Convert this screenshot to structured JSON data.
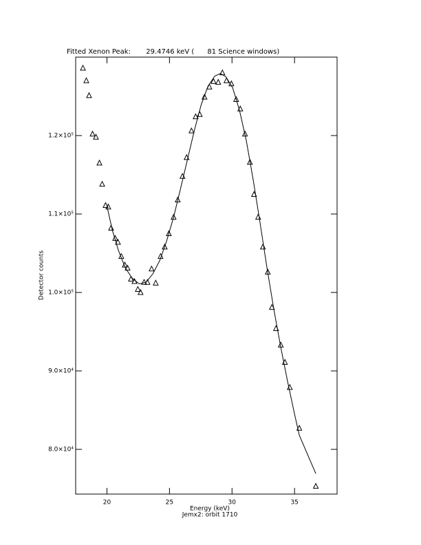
{
  "chart_data": {
    "type": "scatter",
    "title": "Fitted Xenon Peak:       29.4746 keV (      81 Science windows)",
    "x_label": "Energy (keV)",
    "subtitle": "Jemx2: orbit 1710",
    "y_label": "Detector counts",
    "xlim": [
      17.5,
      38.4
    ],
    "ylim": [
      74300,
      130000
    ],
    "xticks": [
      20,
      25,
      30,
      35
    ],
    "yticks": [
      {
        "value": 80000,
        "label": "8.0×10⁴"
      },
      {
        "value": 90000,
        "label": "9.0×10⁴"
      },
      {
        "value": 100000,
        "label": "1.0×10⁵"
      },
      {
        "value": 110000,
        "label": "1.1×10⁵"
      },
      {
        "value": 120000,
        "label": "1.2×10⁵"
      }
    ],
    "color": "#000000",
    "series": [
      {
        "marker": "triangle",
        "x": [
          18.08,
          18.35,
          18.57,
          18.85,
          19.12,
          19.4,
          19.62,
          19.89,
          20.11,
          20.33,
          20.66,
          20.88,
          21.15,
          21.43,
          21.65,
          21.92,
          22.2,
          22.47,
          22.69,
          22.97,
          23.24,
          23.57,
          23.9,
          24.29,
          24.62,
          24.95,
          25.33,
          25.66,
          26.04,
          26.37,
          26.76,
          27.09,
          27.42,
          27.8,
          28.19,
          28.52,
          28.9,
          29.23,
          29.56,
          29.95,
          30.33,
          30.66,
          31.04,
          31.43,
          31.76,
          32.09,
          32.47,
          32.86,
          33.19,
          33.52,
          33.9,
          34.23,
          34.62,
          35.38,
          36.7
        ],
        "values": [
          128600,
          127000,
          125100,
          120200,
          119800,
          116500,
          113800,
          111100,
          110900,
          108200,
          106900,
          106400,
          104600,
          103500,
          103100,
          101700,
          101400,
          100400,
          100000,
          101300,
          101300,
          103000,
          101200,
          104600,
          105800,
          107500,
          109600,
          111800,
          114800,
          117200,
          120600,
          122400,
          122700,
          124900,
          126200,
          126900,
          126800,
          128000,
          127000,
          126600,
          124600,
          123400,
          120200,
          116600,
          112500,
          109600,
          105800,
          102600,
          98100,
          95400,
          93300,
          91100,
          87900,
          82700,
          75300
        ]
      },
      {
        "marker": "line",
        "x": [
          20.0,
          20.44,
          20.93,
          21.48,
          22.03,
          22.58,
          23.13,
          23.68,
          24.23,
          24.78,
          25.33,
          25.88,
          26.43,
          26.98,
          27.53,
          28.08,
          28.63,
          29.07,
          29.51,
          30.05,
          30.6,
          31.15,
          31.7,
          32.25,
          32.8,
          33.35,
          33.9,
          34.45,
          35.0,
          35.38,
          36.7
        ],
        "values": [
          111000,
          107900,
          105300,
          103100,
          101800,
          101100,
          101300,
          102400,
          104100,
          106600,
          109600,
          113200,
          116900,
          120600,
          123900,
          126300,
          127600,
          127900,
          127500,
          126100,
          123200,
          119300,
          114300,
          108800,
          103100,
          97800,
          93000,
          88600,
          84500,
          81800,
          76900
        ]
      }
    ]
  }
}
